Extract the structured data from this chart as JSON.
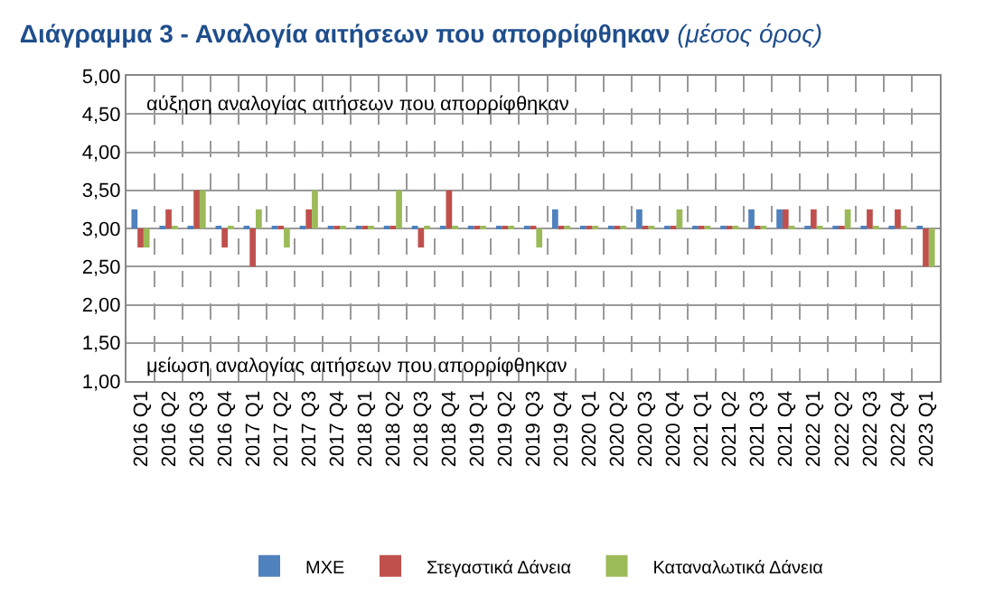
{
  "chart_data": {
    "type": "bar",
    "title": "Διάγραμμα 3 - Αναλογία αιτήσεων που απορρίφθηκαν",
    "subtitle": "(μέσος όρος)",
    "categories": [
      "2016 Q1",
      "2016 Q2",
      "2016 Q3",
      "2016 Q4",
      "2017 Q1",
      "2017 Q2",
      "2017 Q3",
      "2017 Q4",
      "2018 Q1",
      "2018 Q2",
      "2018 Q3",
      "2018 Q4",
      "2019 Q1",
      "2019 Q2",
      "2019 Q3",
      "2019 Q4",
      "2020 Q1",
      "2020 Q2",
      "2020 Q3",
      "2020 Q4",
      "2021 Q1",
      "2021 Q2",
      "2021 Q3",
      "2021 Q4",
      "2022 Q1",
      "2022 Q2",
      "2022 Q3",
      "2022 Q4",
      "2023 Q1"
    ],
    "series": [
      {
        "name": "ΜΧΕ",
        "color": "#4f81bd",
        "base": [
          3,
          3,
          3,
          3,
          3,
          3,
          3,
          3,
          3,
          3,
          3,
          3,
          3,
          3,
          3,
          3,
          3,
          3,
          3,
          3,
          3,
          3,
          3,
          3,
          3,
          3,
          3,
          3,
          3
        ],
        "values": [
          0.25,
          0.02,
          0.02,
          0.02,
          0.02,
          0.02,
          0.02,
          0.02,
          0.02,
          0.02,
          0.02,
          0.02,
          0.02,
          0.02,
          0.02,
          0.25,
          0.02,
          0.02,
          0.25,
          0.02,
          0.02,
          0.02,
          0.25,
          0.25,
          0.02,
          0.02,
          0.02,
          0.02,
          0.02
        ]
      },
      {
        "name": "Στεγαστικά Δάνεια",
        "color": "#c0504d",
        "base": [
          3,
          3,
          3,
          3,
          3,
          3,
          3,
          3,
          3,
          3,
          3,
          3,
          3,
          3,
          3,
          3,
          3,
          3,
          3,
          3,
          3,
          3,
          3,
          3,
          3,
          3,
          3,
          3,
          3
        ],
        "values": [
          -0.25,
          0.25,
          0.5,
          -0.25,
          -0.5,
          0.02,
          0.25,
          0.02,
          0.02,
          0.02,
          -0.25,
          0.5,
          0.02,
          0.02,
          0.02,
          0.02,
          0.02,
          0.02,
          0.02,
          0.02,
          0.02,
          0.02,
          0.02,
          0.25,
          0.25,
          0.02,
          0.25,
          0.25,
          -0.5
        ]
      },
      {
        "name": "Καταναλωτικά Δάνεια",
        "color": "#9bbb59",
        "base": [
          3,
          3,
          3,
          3,
          3,
          3,
          3,
          3,
          3,
          3,
          3,
          3,
          3,
          3,
          3,
          3,
          3,
          3,
          3,
          3,
          3,
          3,
          3,
          3,
          3,
          3,
          3,
          3,
          3
        ],
        "values": [
          -0.25,
          0.02,
          0.5,
          0.02,
          0.25,
          -0.25,
          0.5,
          0.02,
          0.02,
          0.5,
          0.02,
          0.02,
          0.02,
          0.02,
          -0.25,
          0.02,
          0.02,
          0.02,
          0.02,
          0.25,
          0.02,
          0.02,
          0.02,
          0.02,
          0.02,
          0.25,
          0.02,
          0.02,
          -0.5
        ]
      }
    ],
    "ylim": [
      1,
      5
    ],
    "yticks": [
      {
        "value": 1,
        "label": "1,00"
      },
      {
        "value": 1.5,
        "label": "1,50"
      },
      {
        "value": 2,
        "label": "2,00"
      },
      {
        "value": 2.5,
        "label": "2,50"
      },
      {
        "value": 3,
        "label": "3,00"
      },
      {
        "value": 3.5,
        "label": "3,50"
      },
      {
        "value": 4,
        "label": "4,00"
      },
      {
        "value": 4.5,
        "label": "4,50"
      },
      {
        "value": 5,
        "label": "5,00"
      }
    ],
    "annotations": [
      "αύξηση αναλογίας αιτήσεων που απορρίφθηκαν",
      "μείωση αναλογίας αιτήσεων που απορρίφθηκαν"
    ],
    "grid": true,
    "legend": "bottom"
  }
}
